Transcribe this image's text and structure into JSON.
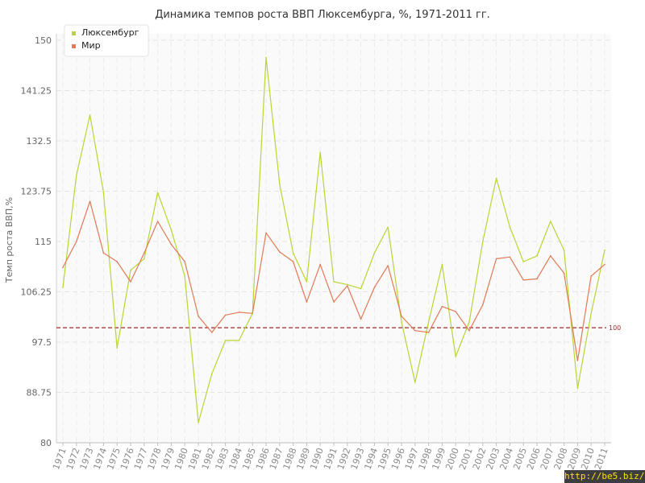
{
  "chart_data": {
    "type": "line",
    "title": "Динамика темпов роста ВВП Люксембурга, %, 1971-2011 гг.",
    "xlabel": "",
    "ylabel": "Темп роста ВВП,%",
    "ylim": [
      80,
      150
    ],
    "yticks": [
      "80",
      "88.75",
      "97.5",
      "106.25",
      "115",
      "123.75",
      "132.5",
      "141.25",
      "150"
    ],
    "grid": true,
    "legend_position": "top-left",
    "reference_line": {
      "value": 100,
      "label": "100",
      "color": "#9b2a2a"
    },
    "x": [
      "1971",
      "1972",
      "1973",
      "1974",
      "1975",
      "1976",
      "1977",
      "1978",
      "1979",
      "1980",
      "1981",
      "1982",
      "1983",
      "1984",
      "1985",
      "1986",
      "1987",
      "1988",
      "1989",
      "1990",
      "1991",
      "1992",
      "1993",
      "1994",
      "1995",
      "1996",
      "1997",
      "1998",
      "1999",
      "2000",
      "2001",
      "2002",
      "2003",
      "2004",
      "2005",
      "2006",
      "2007",
      "2008",
      "2009",
      "2010",
      "2011"
    ],
    "series": [
      {
        "name": "Люксембург",
        "color": "#b8d534",
        "values": [
          107,
          126.5,
          137,
          123.5,
          96.5,
          110,
          112,
          123.5,
          117,
          109,
          83.5,
          92,
          97.8,
          97.8,
          102.5,
          147,
          125,
          113,
          108,
          130.5,
          108,
          107.5,
          106.8,
          113,
          117.5,
          101,
          90.5,
          101,
          111,
          95,
          101,
          115,
          126,
          117.5,
          111.5,
          112.5,
          118.5,
          113.5,
          89.5,
          102.5,
          113.5
        ]
      },
      {
        "name": "Мир",
        "color": "#e07a55",
        "values": [
          110.5,
          115,
          122,
          113,
          111.5,
          108,
          113,
          118.5,
          114.5,
          111.5,
          102,
          99.2,
          102.2,
          102.7,
          102.5,
          116.5,
          113.2,
          111.5,
          104.5,
          111,
          104.5,
          107.3,
          101.5,
          107,
          110.8,
          102,
          99.5,
          99.2,
          103.7,
          102.8,
          99.5,
          104,
          112,
          112.3,
          108.3,
          108.5,
          112.5,
          109.5,
          94.3,
          109,
          111
        ]
      }
    ]
  },
  "watermark": "http://be5.biz/"
}
